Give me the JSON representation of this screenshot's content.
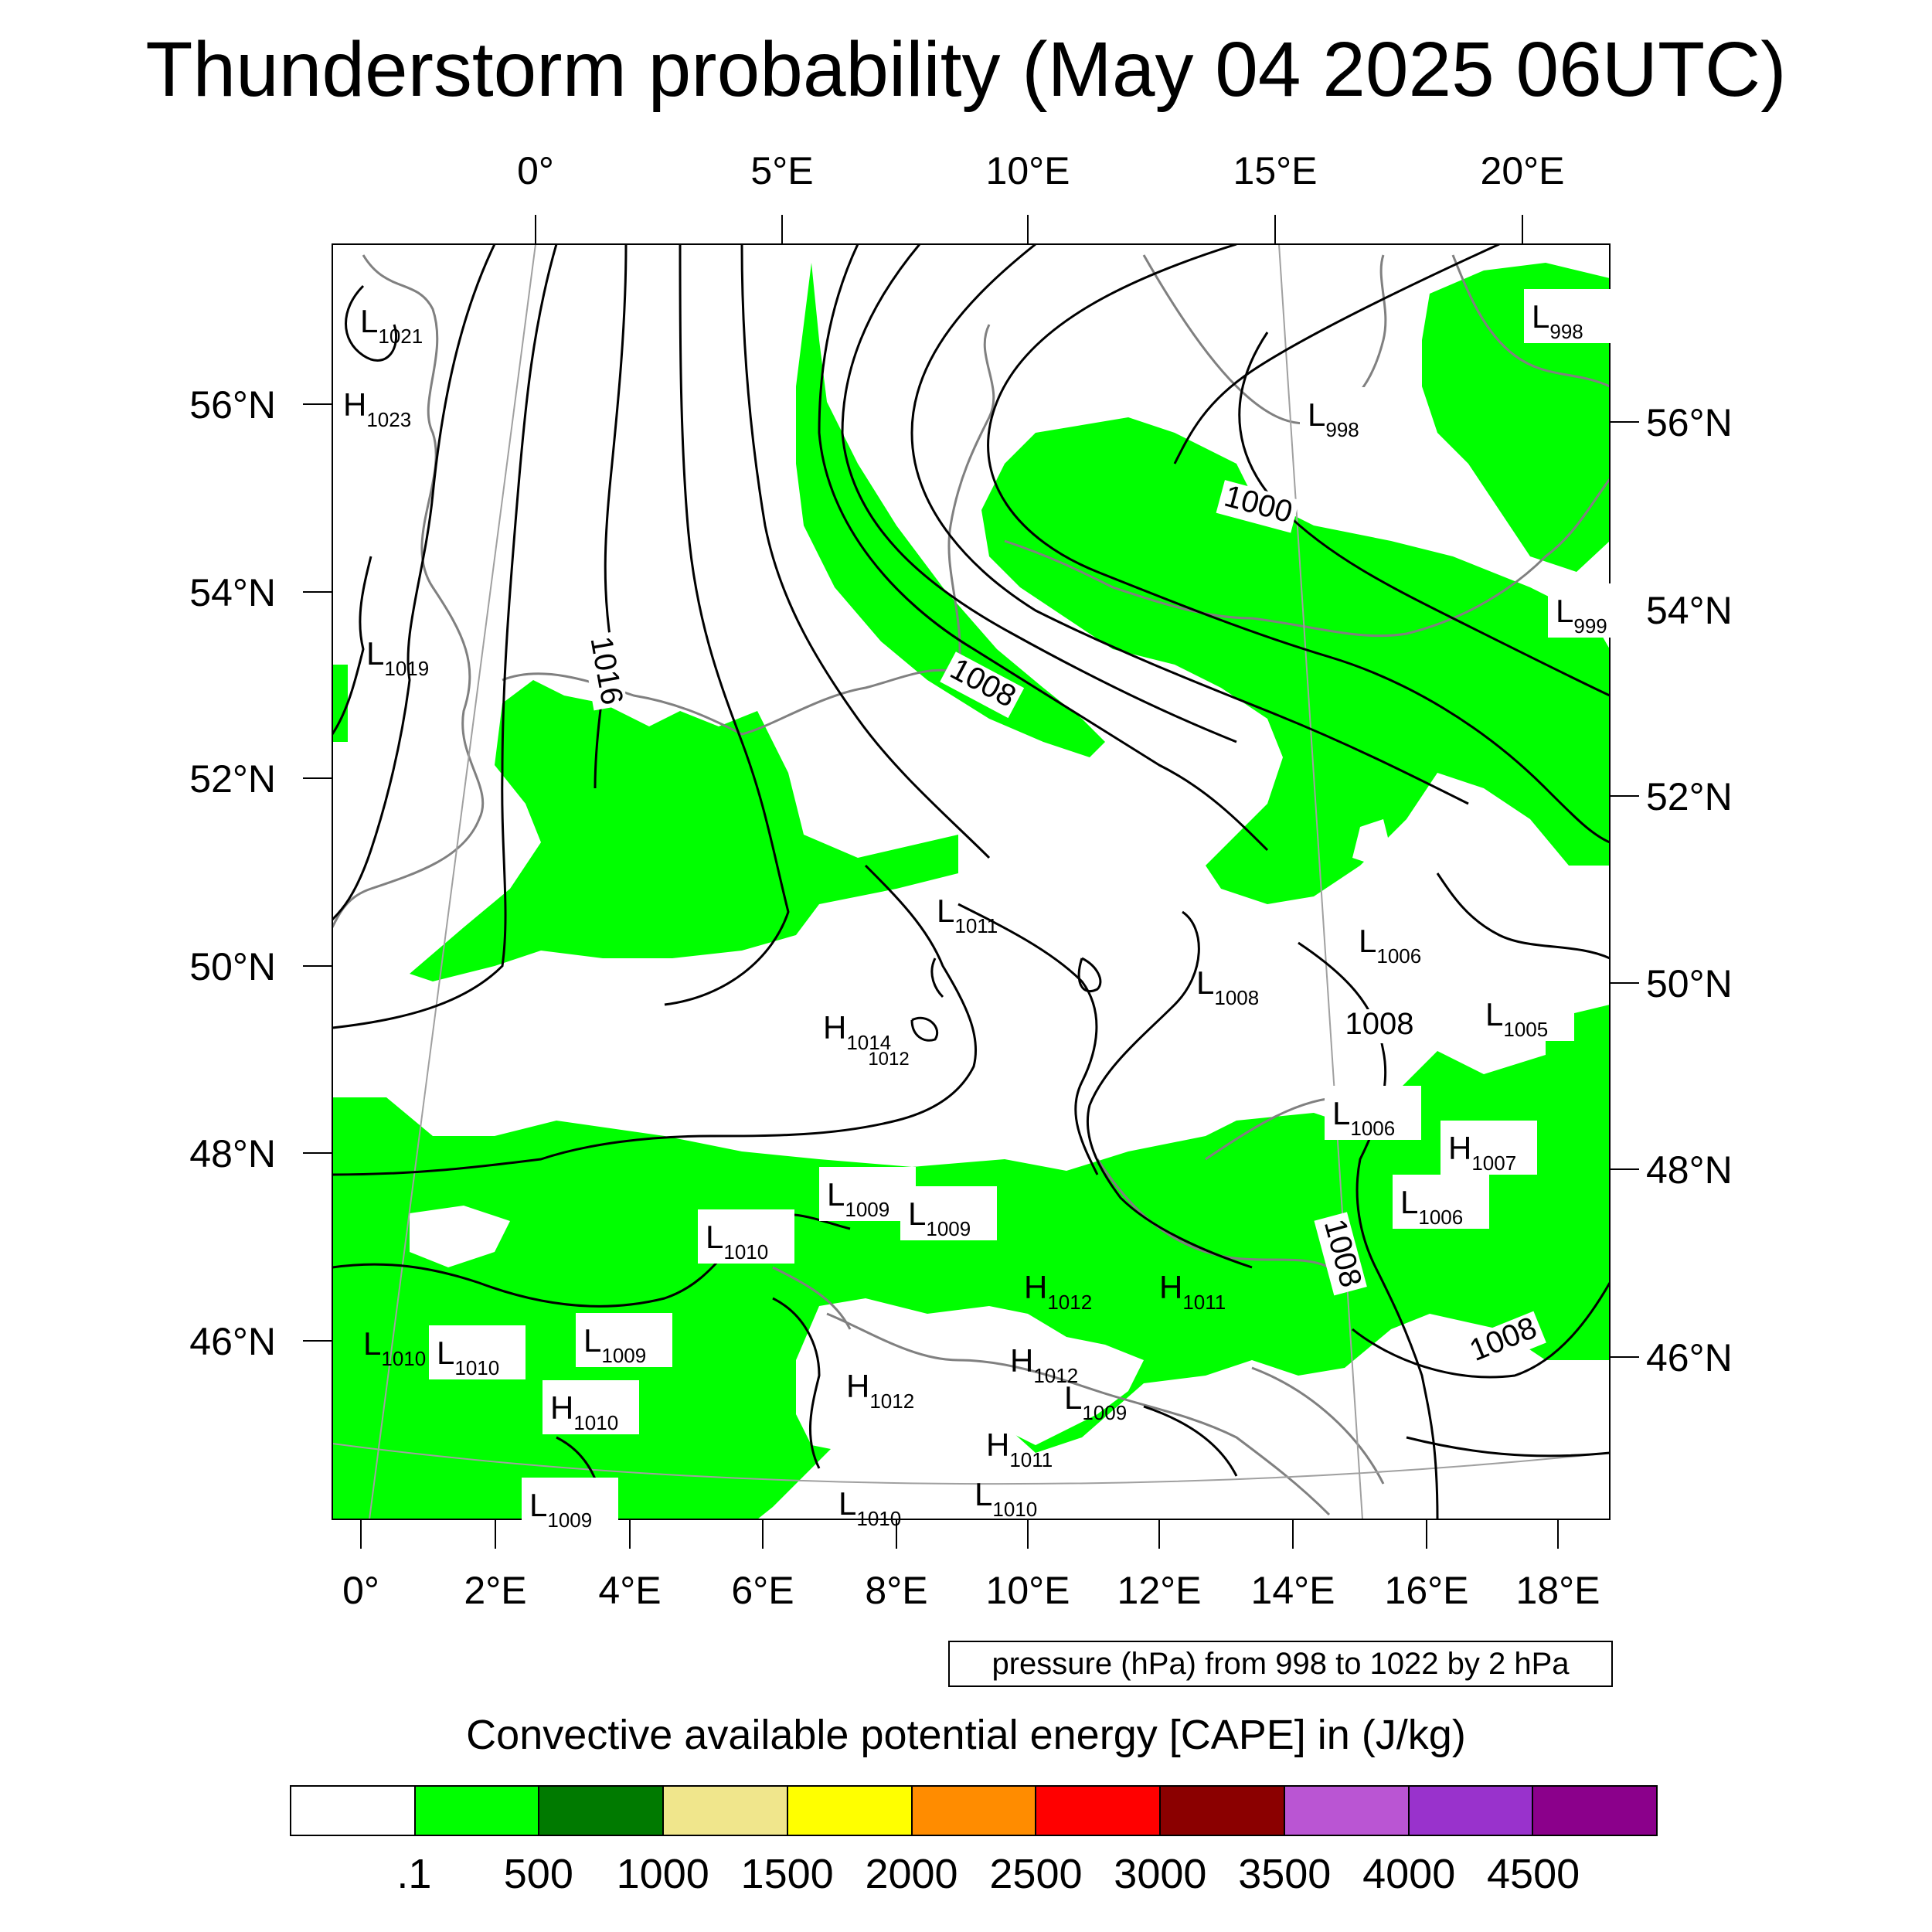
{
  "title": "Thunderstorm probability (May 04 2025 06UTC)",
  "map": {
    "top_lon_labels": [
      "0°",
      "5°E",
      "10°E",
      "15°E",
      "20°E"
    ],
    "left_lat_labels": [
      "56°N",
      "54°N",
      "52°N",
      "50°N",
      "48°N",
      "46°N"
    ],
    "right_lat_labels": [
      "56°N",
      "54°N",
      "52°N",
      "50°N",
      "48°N",
      "46°N"
    ],
    "bottom_lon_labels": [
      "0°",
      "2°E",
      "4°E",
      "6°E",
      "8°E",
      "10°E",
      "12°E",
      "14°E",
      "16°E",
      "18°E"
    ],
    "pressure_centers": [
      {
        "type": "L",
        "value": "1021"
      },
      {
        "type": "H",
        "value": "1023"
      },
      {
        "type": "L",
        "value": "1019"
      },
      {
        "type": "L",
        "value": "998"
      },
      {
        "type": "L",
        "value": "998"
      },
      {
        "type": "L",
        "value": "999"
      },
      {
        "type": "L",
        "value": "1011"
      },
      {
        "type": "H",
        "value": "1014"
      },
      {
        "type": "L",
        "value": "1008"
      },
      {
        "type": "L",
        "value": "1006"
      },
      {
        "type": "L",
        "value": "1005"
      },
      {
        "type": "L",
        "value": "1006"
      },
      {
        "type": "H",
        "value": "1007"
      },
      {
        "type": "L",
        "value": "1006"
      },
      {
        "type": "L",
        "value": "1009"
      },
      {
        "type": "L",
        "value": "1009"
      },
      {
        "type": "L",
        "value": "1010"
      },
      {
        "type": "H",
        "value": "1012"
      },
      {
        "type": "H",
        "value": "1011"
      },
      {
        "type": "L",
        "value": "1010"
      },
      {
        "type": "L",
        "value": "1010"
      },
      {
        "type": "L",
        "value": "1009"
      },
      {
        "type": "H",
        "value": "1012"
      },
      {
        "type": "H",
        "value": "1012"
      },
      {
        "type": "L",
        "value": "1009"
      },
      {
        "type": "H",
        "value": "1010"
      },
      {
        "type": "H",
        "value": "1011"
      },
      {
        "type": "L",
        "value": "1009"
      },
      {
        "type": "L",
        "value": "1010"
      },
      {
        "type": "L",
        "value": "1010"
      }
    ],
    "isobar_labels": [
      "1016",
      "1008",
      "1000",
      "1008",
      "1008",
      "1008",
      "1012"
    ],
    "cape_field_color": "#00ff00",
    "coastline_color": "#808080"
  },
  "pressure_note": "pressure (hPa) from 998 to 1022 by 2 hPa",
  "legend": {
    "title": "Convective available potential energy [CAPE] in (J/kg)",
    "colors": [
      "#ffffff",
      "#00ff00",
      "#007a00",
      "#f0e68c",
      "#ffff00",
      "#ff8c00",
      "#ff0000",
      "#8b0000",
      "#ba55d3",
      "#9932cc",
      "#8b008b"
    ],
    "tick_labels": [
      ".1",
      "500",
      "1000",
      "1500",
      "2000",
      "2500",
      "3000",
      "3500",
      "4000",
      "4500"
    ]
  }
}
